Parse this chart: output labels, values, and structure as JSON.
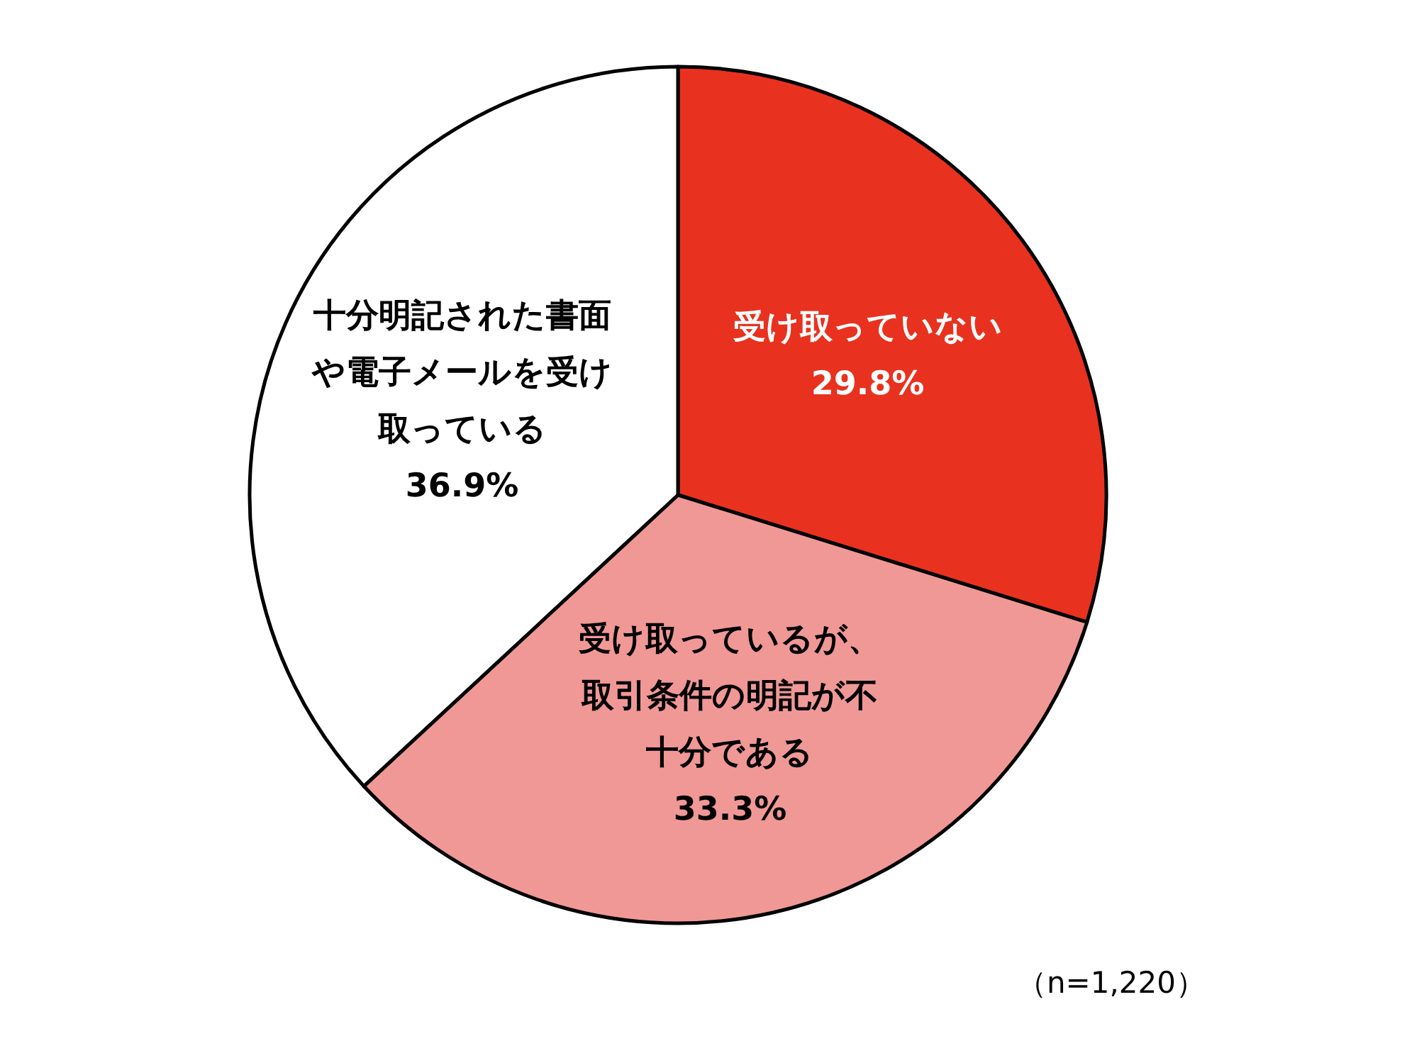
{
  "chart_data": {
    "type": "pie",
    "categories": [
      "受け取っていない",
      "受け取っているが、取引条件の明記が不十分である",
      "十分明記された書面や電子メールを受け取っている"
    ],
    "values": [
      29.8,
      33.3,
      36.9
    ],
    "colors": [
      "#e8321f",
      "#f09896",
      "#ffffff"
    ],
    "value_labels": [
      "29.8%",
      "33.3%",
      "36.9%"
    ],
    "annotations": [
      "（n=1,220）"
    ]
  }
}
